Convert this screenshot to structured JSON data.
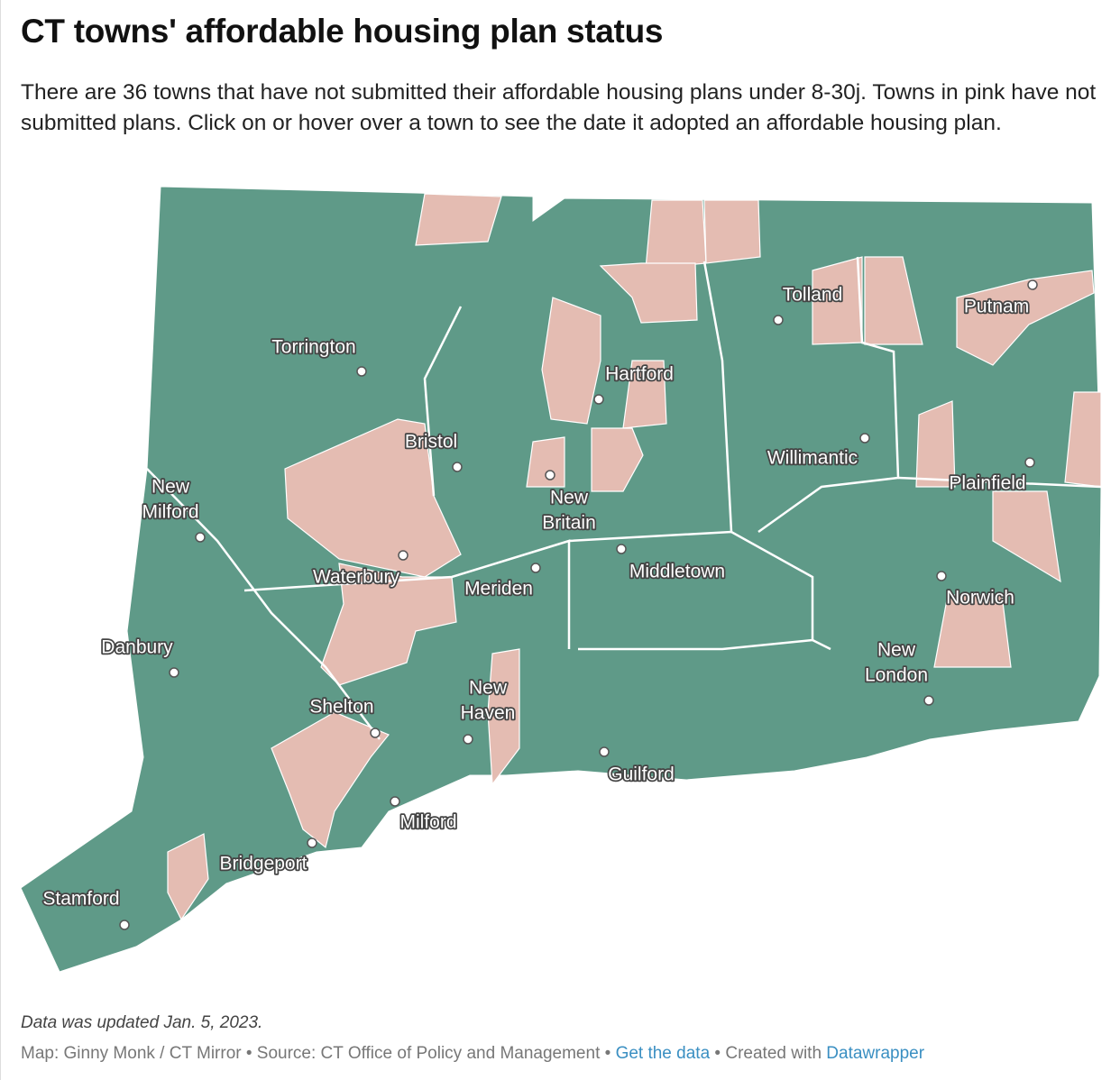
{
  "header": {
    "title": "CT towns' affordable housing plan status",
    "subtitle": "There are 36 towns that have not submitted their affordable housing plans under 8-30j. Towns in pink have not submitted plans. Click on or hover over a town to see the date it adopted an affordable housing plan."
  },
  "map": {
    "labels": [
      {
        "lines": [
          "Torrington"
        ]
      },
      {
        "lines": [
          "Bristol"
        ]
      },
      {
        "lines": [
          "New",
          "Milford"
        ]
      },
      {
        "lines": [
          "Hartford"
        ]
      },
      {
        "lines": [
          "Tolland"
        ]
      },
      {
        "lines": [
          "Putnam"
        ]
      },
      {
        "lines": [
          "Willimantic"
        ]
      },
      {
        "lines": [
          "Plainfield"
        ]
      },
      {
        "lines": [
          "New",
          "Britain"
        ]
      },
      {
        "lines": [
          "Waterbury"
        ]
      },
      {
        "lines": [
          "Meriden"
        ]
      },
      {
        "lines": [
          "Middletown"
        ]
      },
      {
        "lines": [
          "Norwich"
        ]
      },
      {
        "lines": [
          "Danbury"
        ]
      },
      {
        "lines": [
          "New",
          "London"
        ]
      },
      {
        "lines": [
          "Shelton"
        ]
      },
      {
        "lines": [
          "New",
          "Haven"
        ]
      },
      {
        "lines": [
          "Guilford"
        ]
      },
      {
        "lines": [
          "Milford"
        ]
      },
      {
        "lines": [
          "Bridgeport"
        ]
      },
      {
        "lines": [
          "Stamford"
        ]
      }
    ]
  },
  "footer": {
    "note": "Data was updated Jan. 5, 2023.",
    "credits": "Map: Ginny Monk / CT Mirror • Source: CT Office of Policy and Management •",
    "data_link": "Get the data",
    "created": "• Created with",
    "tool_link": "Datawrapper"
  }
}
